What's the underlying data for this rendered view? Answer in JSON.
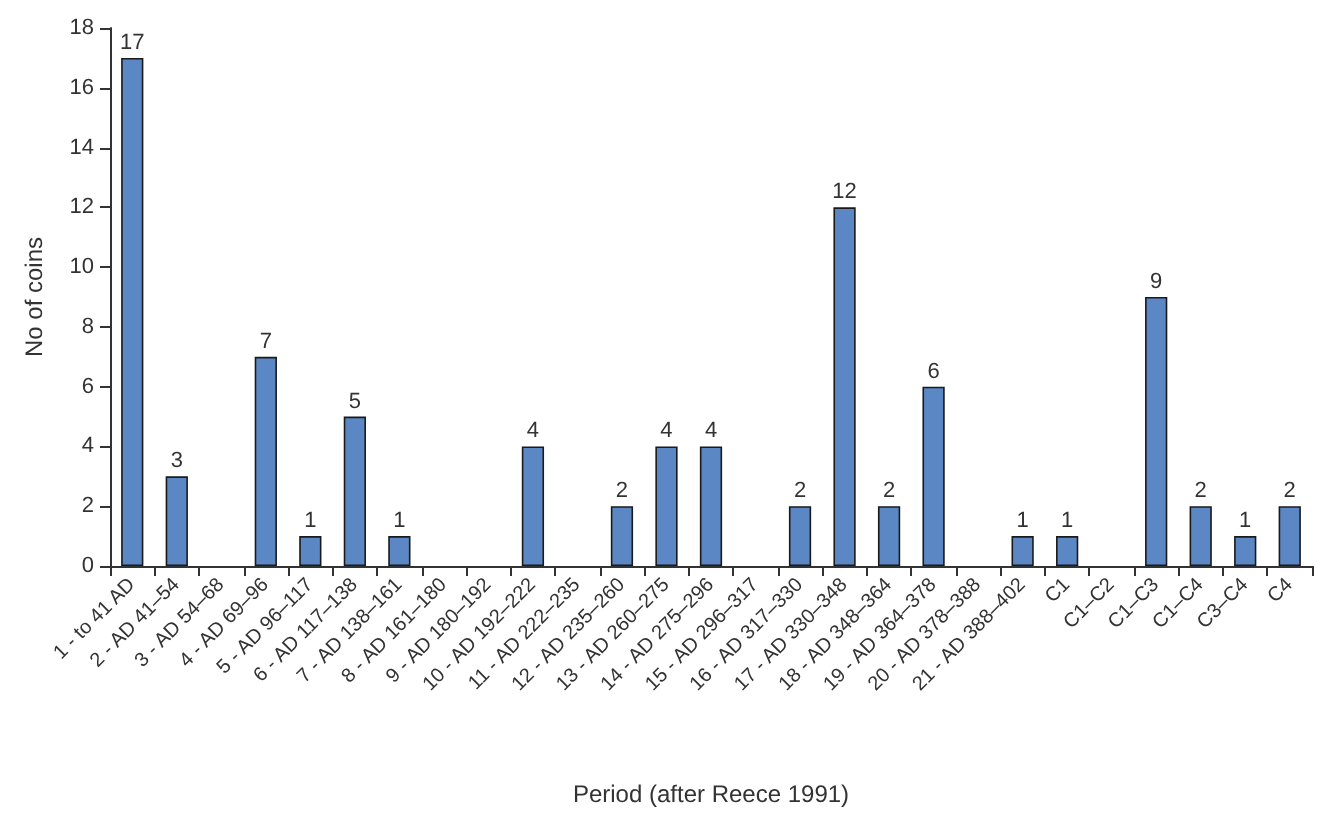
{
  "chart_data": {
    "type": "bar",
    "xlabel": "Period (after Reece 1991)",
    "ylabel": "No of coins",
    "categories": [
      "1 - to 41 AD",
      "2 - AD 41–54",
      "3 - AD 54–68",
      "4 - AD 69–96",
      "5 - AD 96–117",
      "6 - AD 117–138",
      "7 - AD 138–161",
      "8 - AD 161–180",
      "9 - AD 180–192",
      "10 - AD 192–222",
      "11 - AD 222–235",
      "12 - AD 235–260",
      "13 - AD 260–275",
      "14 - AD 275–296",
      "15 - AD 296–317",
      "16 - AD 317–330",
      "17 - AD 330–348",
      "18 - AD 348–364",
      "19 - AD 364–378",
      "20 - AD 378–388",
      "21 - AD 388–402",
      "C1",
      "C1–C2",
      "C1–C3",
      "C1–C4",
      "C3–C4",
      "C4"
    ],
    "values": [
      17,
      3,
      0,
      7,
      1,
      5,
      1,
      0,
      0,
      4,
      0,
      2,
      4,
      4,
      0,
      2,
      12,
      2,
      6,
      0,
      1,
      1,
      0,
      9,
      2,
      1,
      2
    ],
    "value_labels": [
      "17",
      "3",
      null,
      "7",
      "1",
      "5",
      "1",
      null,
      null,
      "4",
      null,
      "2",
      "4",
      "4",
      null,
      "2",
      "12",
      "2",
      "6",
      null,
      "1",
      "1",
      null,
      "9",
      "2",
      "1",
      "2"
    ],
    "color": "#5b87c5",
    "ylim": [
      0,
      18
    ],
    "yticks": [
      0,
      2,
      4,
      6,
      8,
      10,
      12,
      14,
      16,
      18
    ],
    "grid": false
  }
}
